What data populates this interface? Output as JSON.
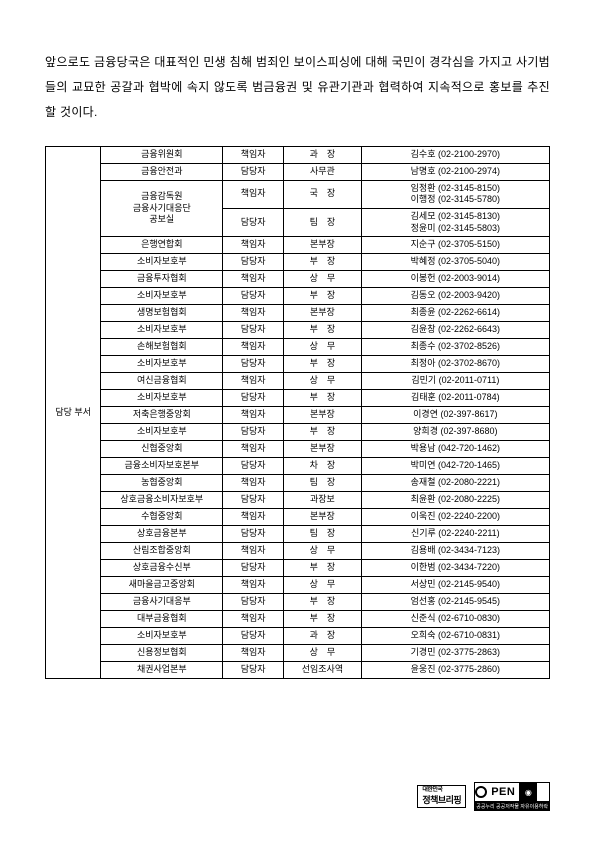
{
  "intro": "앞으로도 금융당국은 대표적인 민생 침해 범죄인 보이스피싱에 대해 국민이 경각심을 가지고 사기범들의 교묘한 공갈과 협박에 속지 않도록 범금융권 및 유관기관과 협력하여 지속적으로 홍보를 추진할 것이다.",
  "leftLabel": "담당 부서",
  "rows": [
    {
      "org": "금융위원회",
      "role": "책임자",
      "pos": "과　장",
      "contact": "김수호 (02-2100-2970)",
      "orgRows": 1
    },
    {
      "org": "금융안전과",
      "role": "담당자",
      "pos": "사무관",
      "contact": "남명호 (02-2100-2974)",
      "orgRows": 1
    },
    {
      "org": "금융감독원\n금융사기대응단\n공보실",
      "role": "책임자",
      "pos": "국　장",
      "contact": "임정환 (02-3145-8150)\n이행정 (02-3145-5780)",
      "orgRows": 2,
      "roleRows": 1
    },
    {
      "org": "",
      "role": "담당자",
      "pos": "팀　장",
      "contact": "김세모 (02-3145-8130)\n정윤미 (02-3145-5803)",
      "skipOrg": true
    },
    {
      "org": "은행연합회",
      "role": "책임자",
      "pos": "본부장",
      "contact": "지순구 (02-3705-5150)",
      "orgRows": 1
    },
    {
      "org": "소비자보호부",
      "role": "담당자",
      "pos": "부　장",
      "contact": "박혜정 (02-3705-5040)",
      "orgRows": 1
    },
    {
      "org": "금융투자협회",
      "role": "책임자",
      "pos": "상　무",
      "contact": "이봉헌 (02-2003-9014)",
      "orgRows": 1
    },
    {
      "org": "소비자보호부",
      "role": "담당자",
      "pos": "부　장",
      "contact": "김동오 (02-2003-9420)",
      "orgRows": 1
    },
    {
      "org": "생명보험협회",
      "role": "책임자",
      "pos": "본부장",
      "contact": "최종윤 (02-2262-6614)",
      "orgRows": 1
    },
    {
      "org": "소비자보호부",
      "role": "담당자",
      "pos": "부　장",
      "contact": "김윤창 (02-2262-6643)",
      "orgRows": 1
    },
    {
      "org": "손해보험협회",
      "role": "책임자",
      "pos": "상　무",
      "contact": "최종수 (02-3702-8526)",
      "orgRows": 1
    },
    {
      "org": "소비자보호부",
      "role": "담당자",
      "pos": "부　장",
      "contact": "최정아 (02-3702-8670)",
      "orgRows": 1
    },
    {
      "org": "여신금융협회",
      "role": "책임자",
      "pos": "상　무",
      "contact": "김민기 (02-2011-0711)",
      "orgRows": 1
    },
    {
      "org": "소비자보호부",
      "role": "담당자",
      "pos": "부　장",
      "contact": "김태훈 (02-2011-0784)",
      "orgRows": 1
    },
    {
      "org": "저축은행중앙회",
      "role": "책임자",
      "pos": "본부장",
      "contact": "이경연 (02-397-8617)",
      "orgRows": 1
    },
    {
      "org": "소비자보호부",
      "role": "담당자",
      "pos": "부　장",
      "contact": "양희경 (02-397-8680)",
      "orgRows": 1
    },
    {
      "org": "신협중앙회",
      "role": "책임자",
      "pos": "본부장",
      "contact": "박용남 (042-720-1462)",
      "orgRows": 1
    },
    {
      "org": "금융소비자보호본부",
      "role": "담당자",
      "pos": "차　장",
      "contact": "박미연 (042-720-1465)",
      "orgRows": 1
    },
    {
      "org": "농협중앙회",
      "role": "책임자",
      "pos": "팀　장",
      "contact": "송재철 (02-2080-2221)",
      "orgRows": 1
    },
    {
      "org": "상호금융소비자보호부",
      "role": "담당자",
      "pos": "과장보",
      "contact": "최윤환 (02-2080-2225)",
      "orgRows": 1
    },
    {
      "org": "수협중앙회",
      "role": "책임자",
      "pos": "본부장",
      "contact": "이욱진 (02-2240-2200)",
      "orgRows": 1
    },
    {
      "org": "상호금융본부",
      "role": "담당자",
      "pos": "팀　장",
      "contact": "신기루 (02-2240-2211)",
      "orgRows": 1
    },
    {
      "org": "산림조합중앙회",
      "role": "책임자",
      "pos": "상　무",
      "contact": "김용배 (02-3434-7123)",
      "orgRows": 1
    },
    {
      "org": "상호금융수신부",
      "role": "담당자",
      "pos": "부　장",
      "contact": "이한범 (02-3434-7220)",
      "orgRows": 1
    },
    {
      "org": "새마을금고중앙회",
      "role": "책임자",
      "pos": "상　무",
      "contact": "서상민 (02-2145-9540)",
      "orgRows": 1
    },
    {
      "org": "금융사기대응부",
      "role": "담당자",
      "pos": "부　장",
      "contact": "엄선홍 (02-2145-9545)",
      "orgRows": 1
    },
    {
      "org": "대부금융협회",
      "role": "책임자",
      "pos": "부　장",
      "contact": "신준식 (02-6710-0830)",
      "orgRows": 1
    },
    {
      "org": "소비자보호부",
      "role": "담당자",
      "pos": "과　장",
      "contact": "오희숙 (02-6710-0831)",
      "orgRows": 1
    },
    {
      "org": "신용정보협회",
      "role": "책임자",
      "pos": "상　무",
      "contact": "기경민 (02-3775-2863)",
      "orgRows": 1
    },
    {
      "org": "채권사업본부",
      "role": "담당자",
      "pos": "선임조사역",
      "contact": "윤웅진 (02-3775-2860)",
      "orgRows": 1
    }
  ],
  "footer": {
    "badge1_top": "대한민국",
    "badge1_main": "정책브리핑",
    "open_label": "PEN",
    "open_caption": "공공누리 공공저작물 자유이용허락"
  }
}
